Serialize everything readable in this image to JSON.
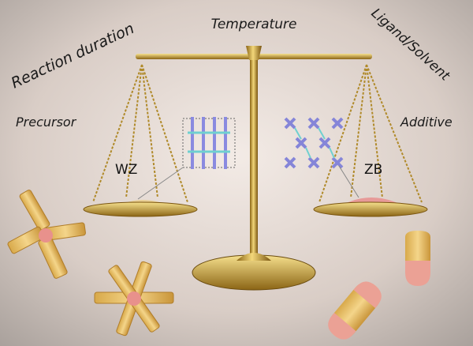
{
  "labels": {
    "reaction_duration": "Reaction duration",
    "temperature": "Temperature",
    "ligand_solvent": "Ligand/Solvent",
    "precursor": "Precursor",
    "additive": "Additive"
  },
  "phases": {
    "left": "WZ",
    "right": "ZB"
  }
}
